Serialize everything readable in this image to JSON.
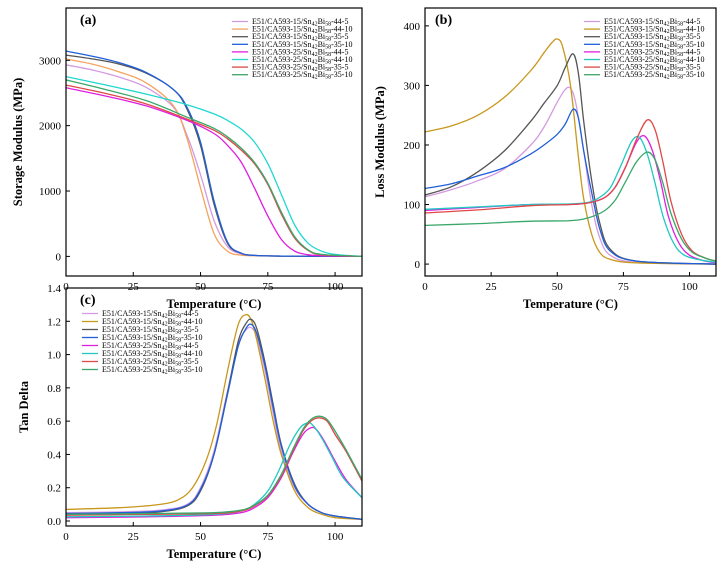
{
  "chart_data": [
    {
      "type": "line",
      "panel_label": "(a)",
      "xlabel": "Temperature (°C)",
      "ylabel": "Storage Modulus (MPa)",
      "xlim": [
        0,
        110
      ],
      "ylim": [
        -300,
        3800
      ],
      "xticks": [
        0,
        25,
        50,
        75,
        100
      ],
      "yticks": [
        0,
        1000,
        2000,
        3000
      ],
      "legend_position": "top-right",
      "series": [
        {
          "name": "E51/CA593-15/Sn42Bi58-44-5",
          "color": "#d49be0",
          "x": [
            0,
            10,
            20,
            30,
            40,
            45,
            50,
            55,
            60,
            65,
            70,
            80,
            110
          ],
          "y": [
            2930,
            2850,
            2740,
            2580,
            2280,
            1850,
            1250,
            550,
            150,
            40,
            15,
            5,
            0
          ]
        },
        {
          "name": "E51/CA593-15/Sn42Bi58-44-10",
          "color": "#f4a460",
          "x": [
            0,
            10,
            20,
            30,
            40,
            45,
            50,
            55,
            60,
            65,
            70,
            80,
            110
          ],
          "y": [
            3020,
            2940,
            2820,
            2650,
            2300,
            1800,
            1050,
            350,
            80,
            20,
            10,
            5,
            0
          ]
        },
        {
          "name": "E51/CA593-15/Sn42Bi58-35-5",
          "color": "#555555",
          "x": [
            0,
            10,
            20,
            30,
            40,
            45,
            50,
            55,
            60,
            65,
            70,
            80,
            110
          ],
          "y": [
            3080,
            3020,
            2940,
            2800,
            2550,
            2250,
            1700,
            800,
            200,
            50,
            15,
            5,
            0
          ]
        },
        {
          "name": "E51/CA593-15/Sn42Bi58-35-10",
          "color": "#1f5fd8",
          "x": [
            0,
            10,
            20,
            30,
            40,
            45,
            50,
            55,
            60,
            65,
            70,
            80,
            110
          ],
          "y": [
            3140,
            3060,
            2960,
            2810,
            2550,
            2280,
            1750,
            850,
            220,
            50,
            15,
            5,
            0
          ]
        },
        {
          "name": "E51/CA593-25/Sn42Bi58-44-5",
          "color": "#e01ee0",
          "x": [
            0,
            15,
            30,
            45,
            55,
            60,
            65,
            70,
            75,
            80,
            85,
            90,
            95,
            110
          ],
          "y": [
            2580,
            2450,
            2300,
            2080,
            1880,
            1700,
            1450,
            1050,
            620,
            260,
            80,
            25,
            10,
            0
          ]
        },
        {
          "name": "E51/CA593-25/Sn42Bi58-44-10",
          "color": "#20d8d0",
          "x": [
            0,
            15,
            30,
            45,
            55,
            60,
            65,
            70,
            75,
            80,
            85,
            90,
            95,
            100,
            110
          ],
          "y": [
            2750,
            2620,
            2480,
            2320,
            2180,
            2080,
            1950,
            1750,
            1420,
            950,
            480,
            200,
            80,
            30,
            0
          ]
        },
        {
          "name": "E51/CA593-25/Sn42Bi58-35-5",
          "color": "#e04848",
          "x": [
            0,
            15,
            30,
            45,
            55,
            60,
            65,
            70,
            75,
            80,
            85,
            90,
            95,
            110
          ],
          "y": [
            2620,
            2490,
            2330,
            2100,
            1930,
            1800,
            1630,
            1420,
            1100,
            650,
            280,
            90,
            25,
            0
          ]
        },
        {
          "name": "E51/CA593-25/Sn42Bi58-35-10",
          "color": "#3aa86a",
          "x": [
            0,
            15,
            30,
            45,
            55,
            60,
            65,
            70,
            75,
            80,
            85,
            90,
            95,
            110
          ],
          "y": [
            2700,
            2550,
            2380,
            2130,
            1960,
            1830,
            1660,
            1440,
            1120,
            680,
            300,
            100,
            30,
            0
          ]
        }
      ]
    },
    {
      "type": "line",
      "panel_label": "(b)",
      "xlabel": "Temperature (°C)",
      "ylabel": "Loss Modulus (MPa)",
      "xlim": [
        0,
        110
      ],
      "ylim": [
        -20,
        430
      ],
      "xticks": [
        0,
        25,
        50,
        75,
        100
      ],
      "yticks": [
        0,
        100,
        200,
        300,
        400
      ],
      "legend_position": "top-right",
      "series": [
        {
          "name": "E51/CA593-15/Sn42Bi58-44-5",
          "color": "#d49be0",
          "x": [
            0,
            10,
            20,
            30,
            40,
            45,
            50,
            53,
            55,
            57,
            60,
            63,
            66,
            70,
            80,
            110
          ],
          "y": [
            113,
            125,
            140,
            160,
            200,
            230,
            272,
            293,
            295,
            270,
            190,
            100,
            45,
            15,
            3,
            0
          ]
        },
        {
          "name": "E51/CA593-15/Sn42Bi58-44-10",
          "color": "#c8981c",
          "x": [
            0,
            10,
            20,
            30,
            40,
            45,
            48,
            50,
            52,
            55,
            58,
            60,
            63,
            66,
            70,
            80,
            110
          ],
          "y": [
            222,
            232,
            250,
            280,
            325,
            355,
            372,
            378,
            365,
            300,
            180,
            110,
            50,
            20,
            8,
            2,
            0
          ]
        },
        {
          "name": "E51/CA593-15/Sn42Bi58-35-5",
          "color": "#555555",
          "x": [
            0,
            10,
            20,
            30,
            40,
            45,
            50,
            53,
            56,
            58,
            60,
            63,
            66,
            70,
            80,
            110
          ],
          "y": [
            116,
            130,
            155,
            190,
            240,
            270,
            300,
            330,
            353,
            320,
            240,
            140,
            70,
            25,
            5,
            0
          ]
        },
        {
          "name": "E51/CA593-15/Sn42Bi58-35-10",
          "color": "#1f5fd8",
          "x": [
            0,
            10,
            20,
            30,
            40,
            45,
            50,
            53,
            56,
            58,
            60,
            63,
            66,
            70,
            80,
            110
          ],
          "y": [
            127,
            135,
            148,
            162,
            185,
            200,
            218,
            235,
            260,
            245,
            190,
            120,
            60,
            22,
            5,
            0
          ]
        },
        {
          "name": "E51/CA593-25/Sn42Bi58-44-5",
          "color": "#e01ee0",
          "x": [
            0,
            20,
            40,
            55,
            62,
            68,
            72,
            76,
            80,
            83,
            86,
            89,
            92,
            96,
            100,
            105,
            110
          ],
          "y": [
            90,
            95,
            100,
            100,
            103,
            112,
            130,
            165,
            205,
            215,
            190,
            140,
            80,
            35,
            15,
            6,
            2
          ]
        },
        {
          "name": "E51/CA593-25/Sn42Bi58-44-10",
          "color": "#20c8c0",
          "x": [
            0,
            20,
            40,
            55,
            62,
            66,
            70,
            74,
            78,
            81,
            84,
            87,
            90,
            94,
            98,
            104,
            110
          ],
          "y": [
            92,
            96,
            100,
            101,
            104,
            112,
            128,
            165,
            205,
            213,
            185,
            135,
            80,
            35,
            15,
            7,
            3
          ]
        },
        {
          "name": "E51/CA593-25/Sn42Bi58-35-5",
          "color": "#e04848",
          "x": [
            0,
            20,
            40,
            55,
            62,
            68,
            72,
            76,
            80,
            84,
            87,
            90,
            93,
            97,
            101,
            106,
            110
          ],
          "y": [
            86,
            91,
            98,
            100,
            103,
            112,
            130,
            165,
            210,
            242,
            225,
            170,
            105,
            50,
            22,
            10,
            5
          ]
        },
        {
          "name": "E51/CA593-25/Sn42Bi58-35-10",
          "color": "#3aa86a",
          "x": [
            0,
            20,
            40,
            55,
            62,
            68,
            72,
            76,
            80,
            84,
            87,
            90,
            93,
            97,
            101,
            106,
            110
          ],
          "y": [
            65,
            68,
            72,
            73,
            78,
            90,
            108,
            140,
            172,
            188,
            175,
            135,
            85,
            42,
            20,
            10,
            5
          ]
        }
      ]
    },
    {
      "type": "line",
      "panel_label": "(c)",
      "xlabel": "Temperature (°C)",
      "ylabel": "Tan Delta",
      "xlim": [
        0,
        110
      ],
      "ylim": [
        -0.03,
        1.4
      ],
      "xticks": [
        0,
        25,
        50,
        75,
        100
      ],
      "yticks": [
        0.0,
        0.2,
        0.4,
        0.6,
        0.8,
        1.0,
        1.2,
        1.4
      ],
      "legend_position": "top-left",
      "series": [
        {
          "name": "E51/CA593-15/Sn42Bi58-44-5",
          "color": "#d49be0",
          "x": [
            0,
            20,
            35,
            45,
            50,
            55,
            60,
            64,
            67,
            69,
            71,
            74,
            77,
            80,
            85,
            90,
            95,
            100,
            110
          ],
          "y": [
            0.05,
            0.055,
            0.065,
            0.1,
            0.2,
            0.42,
            0.78,
            1.06,
            1.15,
            1.16,
            1.1,
            0.9,
            0.65,
            0.42,
            0.2,
            0.1,
            0.05,
            0.03,
            0.01
          ]
        },
        {
          "name": "E51/CA593-15/Sn42Bi58-44-10",
          "color": "#c8981c",
          "x": [
            0,
            20,
            35,
            42,
            47,
            52,
            56,
            60,
            64,
            67,
            69,
            71,
            74,
            77,
            80,
            85,
            90,
            95,
            100,
            110
          ],
          "y": [
            0.07,
            0.08,
            0.1,
            0.13,
            0.2,
            0.36,
            0.58,
            0.9,
            1.18,
            1.24,
            1.2,
            1.08,
            0.85,
            0.6,
            0.4,
            0.18,
            0.08,
            0.04,
            0.02,
            0.01
          ]
        },
        {
          "name": "E51/CA593-15/Sn42Bi58-35-5",
          "color": "#555555",
          "x": [
            0,
            20,
            35,
            45,
            50,
            55,
            60,
            64,
            67,
            69,
            71,
            74,
            77,
            80,
            85,
            90,
            95,
            100,
            110
          ],
          "y": [
            0.04,
            0.045,
            0.055,
            0.09,
            0.18,
            0.4,
            0.77,
            1.08,
            1.19,
            1.21,
            1.15,
            0.95,
            0.7,
            0.46,
            0.22,
            0.1,
            0.05,
            0.03,
            0.01
          ]
        },
        {
          "name": "E51/CA593-15/Sn42Bi58-35-10",
          "color": "#1f5fd8",
          "x": [
            0,
            20,
            35,
            45,
            50,
            55,
            60,
            64,
            67,
            69,
            71,
            74,
            77,
            80,
            85,
            90,
            95,
            100,
            110
          ],
          "y": [
            0.045,
            0.05,
            0.06,
            0.095,
            0.19,
            0.4,
            0.76,
            1.05,
            1.16,
            1.18,
            1.12,
            0.93,
            0.68,
            0.45,
            0.21,
            0.1,
            0.05,
            0.03,
            0.01
          ]
        },
        {
          "name": "E51/CA593-25/Sn42Bi58-44-5",
          "color": "#e01ee0",
          "x": [
            0,
            30,
            55,
            65,
            70,
            75,
            80,
            84,
            88,
            91,
            93,
            96,
            100,
            104,
            110
          ],
          "y": [
            0.02,
            0.025,
            0.035,
            0.05,
            0.08,
            0.14,
            0.26,
            0.4,
            0.52,
            0.56,
            0.55,
            0.48,
            0.36,
            0.25,
            0.14
          ]
        },
        {
          "name": "E51/CA593-25/Sn42Bi58-44-10",
          "color": "#20c8c0",
          "x": [
            0,
            30,
            55,
            65,
            70,
            75,
            79,
            83,
            87,
            90,
            92,
            95,
            99,
            103,
            110
          ],
          "y": [
            0.025,
            0.03,
            0.04,
            0.06,
            0.1,
            0.18,
            0.3,
            0.45,
            0.56,
            0.59,
            0.57,
            0.5,
            0.38,
            0.26,
            0.14
          ]
        },
        {
          "name": "E51/CA593-25/Sn42Bi58-35-5",
          "color": "#e04848",
          "x": [
            0,
            30,
            55,
            65,
            70,
            75,
            80,
            84,
            88,
            91,
            94,
            97,
            100,
            104,
            110
          ],
          "y": [
            0.035,
            0.04,
            0.045,
            0.06,
            0.09,
            0.15,
            0.27,
            0.41,
            0.54,
            0.6,
            0.62,
            0.6,
            0.52,
            0.42,
            0.24
          ]
        },
        {
          "name": "E51/CA593-25/Sn42Bi58-35-10",
          "color": "#3aa86a",
          "x": [
            0,
            30,
            55,
            65,
            70,
            75,
            80,
            84,
            88,
            91,
            94,
            97,
            100,
            104,
            110
          ],
          "y": [
            0.04,
            0.045,
            0.05,
            0.065,
            0.095,
            0.155,
            0.28,
            0.42,
            0.55,
            0.61,
            0.63,
            0.61,
            0.54,
            0.43,
            0.25
          ]
        }
      ]
    }
  ]
}
